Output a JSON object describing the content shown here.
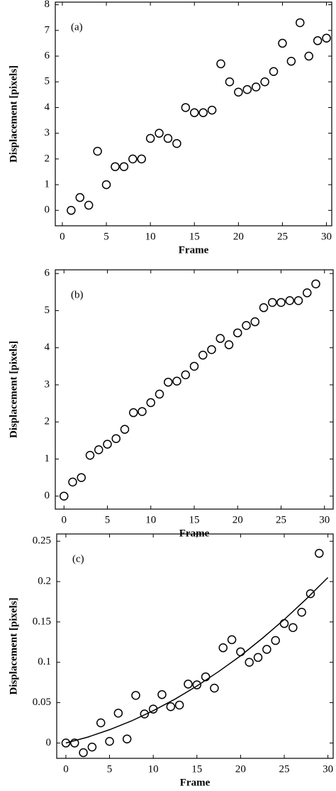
{
  "chart_data": [
    {
      "type": "scatter",
      "annotation": "(a)",
      "xlabel": "Frame",
      "ylabel": "Displacement [pixels]",
      "color": "#000000",
      "x": [
        1,
        2,
        3,
        4,
        5,
        6,
        7,
        8,
        9,
        10,
        11,
        12,
        13,
        14,
        15,
        16,
        17,
        18,
        19,
        20,
        21,
        22,
        23,
        24,
        25,
        26,
        27,
        28,
        29,
        30
      ],
      "values": [
        0,
        0.5,
        0.2,
        2.3,
        1.0,
        1.7,
        1.7,
        2.0,
        2.0,
        2.8,
        3.0,
        2.8,
        2.6,
        4.0,
        3.8,
        3.8,
        3.9,
        5.7,
        5.0,
        4.6,
        4.7,
        4.8,
        5.0,
        5.4,
        6.5,
        5.8,
        7.3,
        6.0,
        6.6,
        6.7
      ],
      "xlim": [
        -0.8,
        30.6
      ],
      "ylim": [
        -0.6,
        8.1
      ],
      "xticks": [
        0,
        5,
        10,
        15,
        20,
        25,
        30
      ],
      "yticks": [
        0,
        1,
        2,
        3,
        4,
        5,
        6,
        7,
        8
      ],
      "grid": false
    },
    {
      "type": "scatter",
      "annotation": "(b)",
      "xlabel": "Frame",
      "ylabel": "Displacement [pixels]",
      "color": "#000000",
      "x": [
        0,
        1,
        2,
        3,
        4,
        5,
        6,
        7,
        8,
        9,
        10,
        11,
        12,
        13,
        14,
        15,
        16,
        17,
        18,
        19,
        20,
        21,
        22,
        23,
        24,
        25,
        26,
        27,
        28,
        29
      ],
      "values": [
        0,
        0.38,
        0.5,
        1.1,
        1.25,
        1.4,
        1.55,
        1.8,
        2.25,
        2.28,
        2.52,
        2.75,
        3.07,
        3.1,
        3.27,
        3.5,
        3.8,
        3.95,
        4.25,
        4.08,
        4.4,
        4.6,
        4.7,
        5.08,
        5.22,
        5.22,
        5.27,
        5.27,
        5.48,
        5.72
      ],
      "xlim": [
        -1,
        31
      ],
      "ylim": [
        -0.35,
        6.1
      ],
      "xticks": [
        0,
        5,
        10,
        15,
        20,
        25,
        30
      ],
      "yticks": [
        0,
        1,
        2,
        3,
        4,
        5,
        6
      ],
      "grid": false
    },
    {
      "type": "scatter",
      "annotation": "(c)",
      "xlabel": "Frame",
      "ylabel": "Displacement [pixels]",
      "color": "#000000",
      "x": [
        0,
        1,
        2,
        3,
        4,
        5,
        6,
        7,
        8,
        9,
        10,
        11,
        12,
        13,
        14,
        15,
        16,
        17,
        18,
        19,
        20,
        21,
        22,
        23,
        24,
        25,
        26,
        27,
        28,
        29
      ],
      "values": [
        0,
        0,
        -0.012,
        -0.005,
        0.025,
        0.002,
        0.037,
        0.005,
        0.059,
        0.036,
        0.042,
        0.06,
        0.045,
        0.047,
        0.073,
        0.072,
        0.082,
        0.068,
        0.118,
        0.128,
        0.113,
        0.1,
        0.106,
        0.116,
        0.127,
        0.148,
        0.143,
        0.162,
        0.185,
        0.235
      ],
      "fit": {
        "color": "#000000",
        "x": [
          0,
          2.5,
          5,
          7.5,
          10,
          12.5,
          15,
          17.5,
          20,
          22.5,
          25,
          27.5,
          30
        ],
        "values": [
          0,
          0.0073,
          0.0165,
          0.0273,
          0.04,
          0.0544,
          0.0706,
          0.0886,
          0.108,
          0.1298,
          0.153,
          0.1782,
          0.205
        ]
      },
      "xlim": [
        -1.05,
        30.6
      ],
      "ylim": [
        -0.019,
        0.259
      ],
      "xticks": [
        0,
        5,
        10,
        15,
        20,
        25,
        30
      ],
      "yticks": [
        0,
        0.05,
        0.1,
        0.15,
        0.2,
        0.25
      ],
      "grid": false
    }
  ]
}
